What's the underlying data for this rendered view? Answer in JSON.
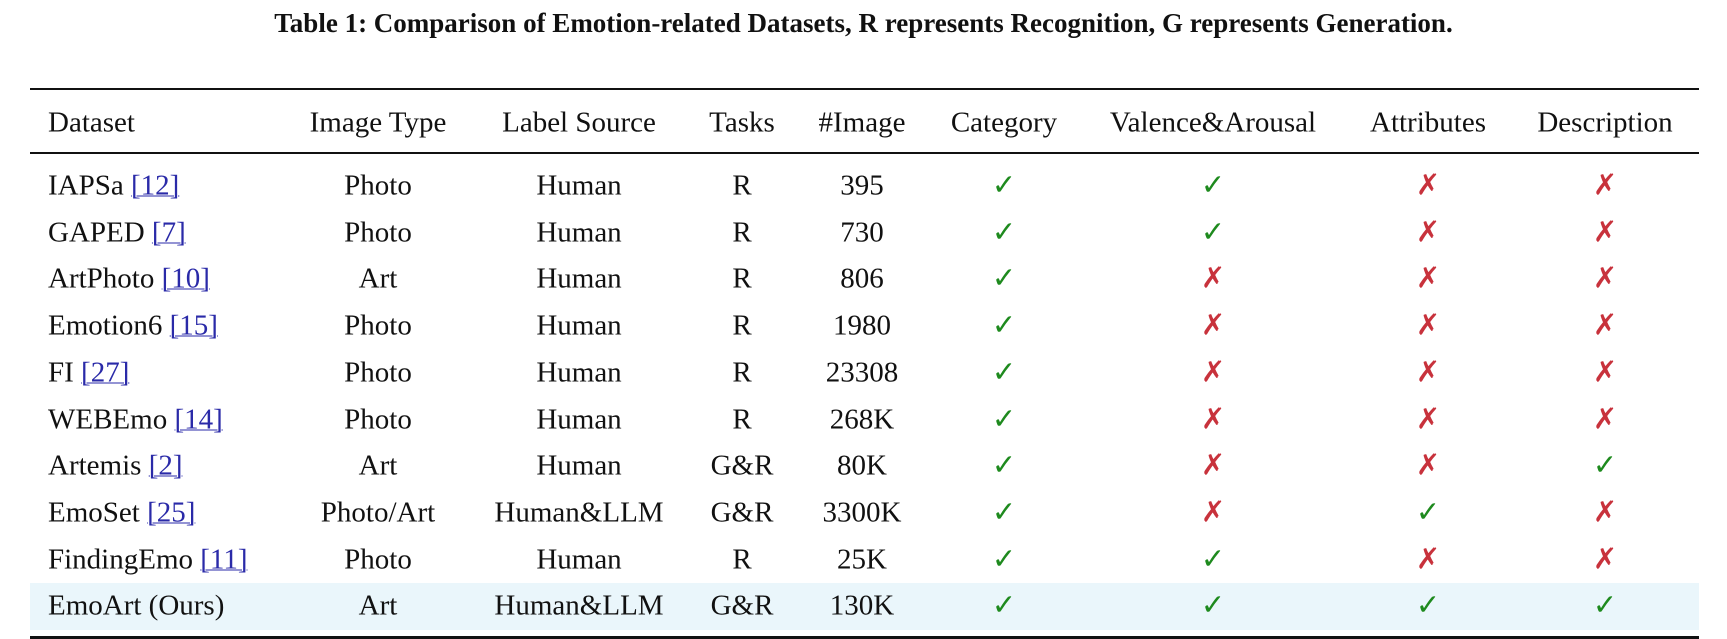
{
  "caption": "Table 1: Comparison of Emotion-related Datasets, R represents Recognition, G represents Generation.",
  "table": {
    "header": [
      "Dataset",
      "Image Type",
      "Label Source",
      "Tasks",
      "#Image",
      "Category",
      "Valence&Arousal",
      "Attributes",
      "Description"
    ],
    "rows": [
      {
        "name": "IAPSa",
        "cite": "[12]",
        "cells": [
          "Photo",
          "Human",
          "R",
          "395",
          "✓",
          "✓",
          "✗",
          "✗"
        ]
      },
      {
        "name": "GAPED",
        "cite": "[7]",
        "cells": [
          "Photo",
          "Human",
          "R",
          "730",
          "✓",
          "✓",
          "✗",
          "✗"
        ]
      },
      {
        "name": "ArtPhoto",
        "cite": "[10]",
        "cells": [
          "Art",
          "Human",
          "R",
          "806",
          "✓",
          "✗",
          "✗",
          "✗"
        ]
      },
      {
        "name": "Emotion6",
        "cite": "[15]",
        "cells": [
          "Photo",
          "Human",
          "R",
          "1980",
          "✓",
          "✗",
          "✗",
          "✗"
        ]
      },
      {
        "name": "FI",
        "cite": "[27]",
        "cells": [
          "Photo",
          "Human",
          "R",
          "23308",
          "✓",
          "✗",
          "✗",
          "✗"
        ]
      },
      {
        "name": "WEBEmo",
        "cite": "[14]",
        "cells": [
          "Photo",
          "Human",
          "R",
          "268K",
          "✓",
          "✗",
          "✗",
          "✗"
        ]
      },
      {
        "name": "Artemis",
        "cite": "[2]",
        "cells": [
          "Art",
          "Human",
          "G&R",
          "80K",
          "✓",
          "✗",
          "✗",
          "✓"
        ]
      },
      {
        "name": "EmoSet",
        "cite": "[25]",
        "cells": [
          "Photo/Art",
          "Human&LLM",
          "G&R",
          "3300K",
          "✓",
          "✗",
          "✓",
          "✗"
        ]
      },
      {
        "name": "FindingEmo",
        "cite": "[11]",
        "cells": [
          "Photo",
          "Human",
          "R",
          "25K",
          "✓",
          "✓",
          "✗",
          "✗"
        ]
      },
      {
        "name": "EmoArt (Ours)",
        "cells": [
          "Art",
          "Human&LLM",
          "G&R",
          "130K",
          "✓",
          "✓",
          "✓",
          "✓"
        ]
      }
    ]
  }
}
